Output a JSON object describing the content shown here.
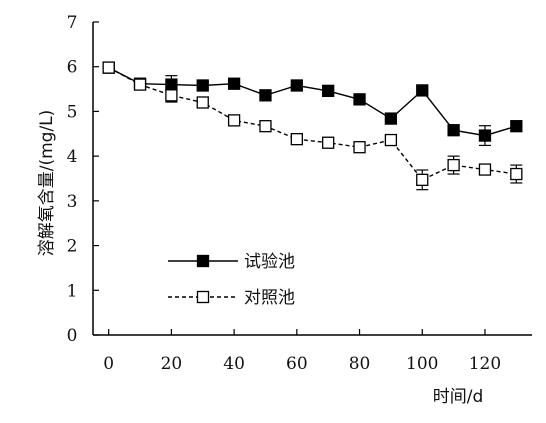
{
  "chart_data": {
    "type": "line",
    "title": "",
    "xlabel": "时间/d",
    "ylabel": "溶解氧含量/(mg/L)",
    "xlim": [
      -5,
      135
    ],
    "ylim": [
      0,
      7
    ],
    "xticks": [
      0,
      20,
      40,
      60,
      80,
      100,
      120
    ],
    "yticks": [
      0,
      1,
      2,
      3,
      4,
      5,
      6,
      7
    ],
    "grid": false,
    "legend_position": "lower-left",
    "series": [
      {
        "name": "试验池",
        "marker": "filled-square",
        "line_style": "solid",
        "x": [
          0,
          10,
          20,
          30,
          40,
          50,
          60,
          70,
          80,
          90,
          100,
          110,
          120,
          130
        ],
        "y": [
          5.98,
          5.62,
          5.6,
          5.58,
          5.62,
          5.36,
          5.58,
          5.46,
          5.27,
          4.84,
          5.47,
          4.58,
          4.46,
          4.67
        ],
        "error": [
          0.05,
          0.05,
          0.2,
          0.05,
          0.05,
          0.05,
          0.05,
          0.05,
          0.05,
          0.05,
          0.05,
          0.05,
          0.22,
          0.05
        ]
      },
      {
        "name": "对照池",
        "marker": "open-square",
        "line_style": "dashed",
        "x": [
          0,
          10,
          20,
          30,
          40,
          50,
          60,
          70,
          80,
          90,
          100,
          110,
          120,
          130
        ],
        "y": [
          5.98,
          5.6,
          5.36,
          5.2,
          4.8,
          4.67,
          4.38,
          4.3,
          4.2,
          4.36,
          3.47,
          3.8,
          3.7,
          3.6
        ],
        "error": [
          0.05,
          0.05,
          0.15,
          0.1,
          0.05,
          0.05,
          0.05,
          0.05,
          0.05,
          0.05,
          0.22,
          0.2,
          0.1,
          0.2
        ]
      }
    ]
  }
}
